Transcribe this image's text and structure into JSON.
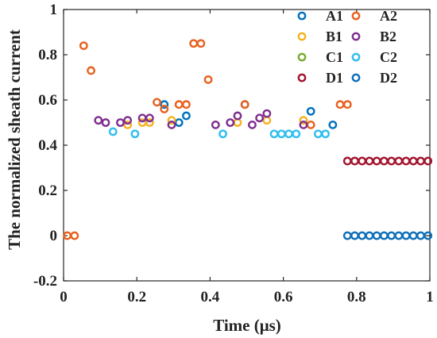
{
  "chart_data": {
    "type": "scatter",
    "title": "",
    "xlabel": "Time (μs)",
    "ylabel": "The normalized sheath current",
    "xlim": [
      0,
      1
    ],
    "ylim": [
      -0.2,
      1
    ],
    "xticks": [
      "0",
      "0.2",
      "0.4",
      "0.6",
      "0.8",
      "1"
    ],
    "yticks": [
      "-0.2",
      "0",
      "0.2",
      "0.4",
      "0.6",
      "0.8",
      "1"
    ],
    "grid": false,
    "legend": "top-right, two columns",
    "marker": "open-circle",
    "series": [
      {
        "name": "A1",
        "color": "#0072BD",
        "points": [
          [
            0.275,
            0.58
          ],
          [
            0.315,
            0.5
          ],
          [
            0.335,
            0.53
          ],
          [
            0.495,
            0.58
          ],
          [
            0.675,
            0.55
          ],
          [
            0.735,
            0.49
          ]
        ]
      },
      {
        "name": "A2",
        "color": "#E9601E",
        "points": [
          [
            0.01,
            0.0
          ],
          [
            0.03,
            0.0
          ],
          [
            0.055,
            0.84
          ],
          [
            0.075,
            0.73
          ],
          [
            0.255,
            0.59
          ],
          [
            0.275,
            0.56
          ],
          [
            0.315,
            0.58
          ],
          [
            0.335,
            0.58
          ],
          [
            0.355,
            0.85
          ],
          [
            0.375,
            0.85
          ],
          [
            0.395,
            0.69
          ],
          [
            0.495,
            0.58
          ],
          [
            0.675,
            0.49
          ],
          [
            0.755,
            0.58
          ],
          [
            0.775,
            0.58
          ]
        ]
      },
      {
        "name": "B1",
        "color": "#F5B21F",
        "points": [
          [
            0.175,
            0.49
          ],
          [
            0.215,
            0.5
          ],
          [
            0.235,
            0.5
          ],
          [
            0.295,
            0.51
          ],
          [
            0.475,
            0.5
          ],
          [
            0.555,
            0.51
          ],
          [
            0.655,
            0.51
          ]
        ]
      },
      {
        "name": "B2",
        "color": "#7E2F8E",
        "points": [
          [
            0.095,
            0.51
          ],
          [
            0.115,
            0.5
          ],
          [
            0.155,
            0.5
          ],
          [
            0.175,
            0.51
          ],
          [
            0.215,
            0.52
          ],
          [
            0.235,
            0.52
          ],
          [
            0.295,
            0.49
          ],
          [
            0.415,
            0.49
          ],
          [
            0.455,
            0.5
          ],
          [
            0.475,
            0.53
          ],
          [
            0.515,
            0.49
          ],
          [
            0.535,
            0.52
          ],
          [
            0.555,
            0.54
          ],
          [
            0.655,
            0.49
          ]
        ]
      },
      {
        "name": "C1",
        "color": "#77AC30",
        "points": []
      },
      {
        "name": "C2",
        "color": "#30BEEF",
        "points": [
          [
            0.135,
            0.46
          ],
          [
            0.195,
            0.45
          ],
          [
            0.435,
            0.45
          ],
          [
            0.575,
            0.45
          ],
          [
            0.595,
            0.45
          ],
          [
            0.615,
            0.45
          ],
          [
            0.635,
            0.45
          ],
          [
            0.695,
            0.45
          ],
          [
            0.715,
            0.45
          ]
        ]
      },
      {
        "name": "D1",
        "color": "#A2142F",
        "points": [
          [
            0.775,
            0.33
          ],
          [
            0.795,
            0.33
          ],
          [
            0.815,
            0.33
          ],
          [
            0.835,
            0.33
          ],
          [
            0.855,
            0.33
          ],
          [
            0.875,
            0.33
          ],
          [
            0.895,
            0.33
          ],
          [
            0.915,
            0.33
          ],
          [
            0.935,
            0.33
          ],
          [
            0.955,
            0.33
          ],
          [
            0.975,
            0.33
          ],
          [
            0.995,
            0.33
          ]
        ]
      },
      {
        "name": "D2",
        "color": "#0F6FB9",
        "points": [
          [
            0.775,
            0.0
          ],
          [
            0.795,
            0.0
          ],
          [
            0.815,
            0.0
          ],
          [
            0.835,
            0.0
          ],
          [
            0.855,
            0.0
          ],
          [
            0.875,
            0.0
          ],
          [
            0.895,
            0.0
          ],
          [
            0.915,
            0.0
          ],
          [
            0.935,
            0.0
          ],
          [
            0.955,
            0.0
          ],
          [
            0.975,
            0.0
          ],
          [
            0.995,
            0.0
          ]
        ]
      }
    ]
  }
}
